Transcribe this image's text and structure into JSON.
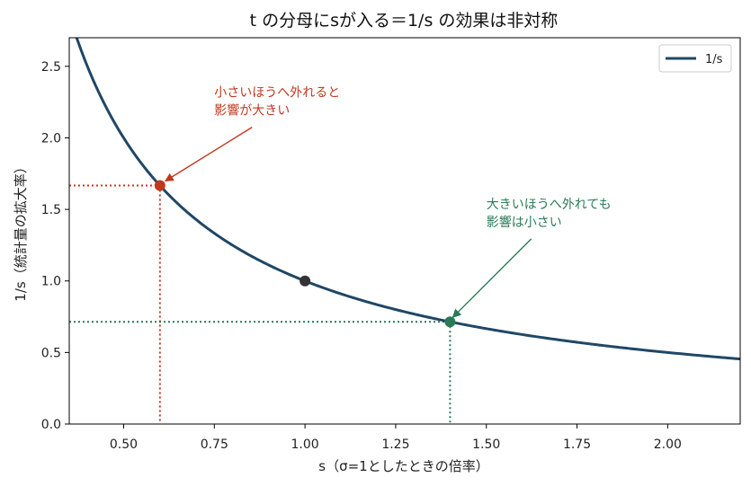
{
  "chart_data": {
    "type": "line",
    "title": "t の分母にsが入る＝1/s の効果は非対称",
    "xlabel": "s（σ=1としたときの倍率）",
    "ylabel": "1/s（統計量の拡大率）",
    "xlim": [
      0.35,
      2.2
    ],
    "ylim": [
      0.0,
      2.7
    ],
    "xticks": [
      "0.50",
      "0.75",
      "1.00",
      "1.25",
      "1.50",
      "1.75",
      "2.00"
    ],
    "yticks": [
      "0.0",
      "0.5",
      "1.0",
      "1.5",
      "2.0",
      "2.5"
    ],
    "series": [
      {
        "name": "1/s",
        "function": "1/s",
        "x_range": [
          0.35,
          2.2
        ],
        "color": "#1f4766"
      }
    ],
    "points": [
      {
        "x": 0.6,
        "y": 1.667,
        "color": "#c0391f"
      },
      {
        "x": 1.0,
        "y": 1.0,
        "color": "#333333"
      },
      {
        "x": 1.4,
        "y": 0.714,
        "color": "#2a7a56"
      }
    ],
    "annotations": [
      {
        "lines": [
          "小さいほうへ外れると",
          "影響が大きい"
        ],
        "color": "#c0391f",
        "text_at": [
          0.75,
          2.2
        ],
        "arrow_to": [
          0.6,
          1.667
        ]
      },
      {
        "lines": [
          "大きいほうへ外れても",
          "影響は小さい"
        ],
        "color": "#2a7a56",
        "text_at": [
          1.5,
          1.42
        ],
        "arrow_to": [
          1.4,
          0.714
        ]
      }
    ],
    "grid": false,
    "legend": {
      "position": "top-right",
      "entries": [
        "1/s"
      ]
    },
    "colors": {
      "curve": "#1f4766",
      "small": "#c0391f",
      "large": "#2a7a56",
      "center": "#333333"
    }
  }
}
